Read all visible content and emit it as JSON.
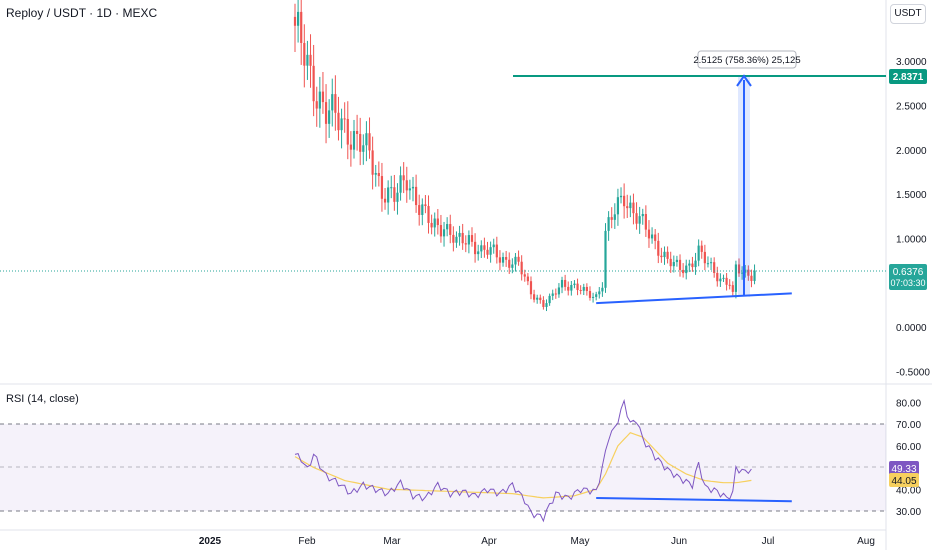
{
  "header": {
    "title": "Reploy / USDT · 1D · MEXC",
    "currency": "USDT"
  },
  "measure_label": "2.5125 (758.36%) 25,125",
  "last_price": {
    "value": "0.6376",
    "countdown": "07:03:30"
  },
  "target_price": "2.8371",
  "rsi": {
    "title": "RSI (14, close)",
    "value": "49.33",
    "ma_value": "44.05"
  },
  "chart_data": [
    {
      "type": "candlestick",
      "title": "Reploy / USDT · 1D · MEXC",
      "y_ticks": [
        "3.0000",
        "2.5000",
        "2.0000",
        "1.5000",
        "1.0000",
        "0.0000",
        "-0.5000"
      ],
      "x_ticks": [
        "2025",
        "Feb",
        "Mar",
        "Apr",
        "May",
        "Jun",
        "Jul",
        "Aug"
      ],
      "ylim": [
        -0.5,
        3.5
      ],
      "close_anchors": [
        [
          0,
          3.4
        ],
        [
          5,
          2.8
        ],
        [
          10,
          2.45
        ],
        [
          15,
          2.3
        ],
        [
          20,
          2.1
        ],
        [
          24,
          1.95
        ],
        [
          28,
          1.55
        ],
        [
          32,
          1.45
        ],
        [
          36,
          1.7
        ],
        [
          40,
          1.35
        ],
        [
          44,
          1.15
        ],
        [
          48,
          1.15
        ],
        [
          52,
          0.95
        ],
        [
          56,
          1.0
        ],
        [
          60,
          0.85
        ],
        [
          64,
          0.85
        ],
        [
          68,
          0.75
        ],
        [
          72,
          0.7
        ],
        [
          76,
          0.4
        ],
        [
          80,
          0.25
        ],
        [
          82,
          0.3
        ],
        [
          86,
          0.5
        ],
        [
          90,
          0.45
        ],
        [
          94,
          0.38
        ],
        [
          97,
          0.35
        ],
        [
          99,
          0.5
        ],
        [
          100,
          1.05
        ],
        [
          103,
          1.3
        ],
        [
          106,
          1.5
        ],
        [
          108,
          1.35
        ],
        [
          112,
          1.15
        ],
        [
          116,
          0.95
        ],
        [
          120,
          0.75
        ],
        [
          124,
          0.65
        ],
        [
          127,
          0.7
        ],
        [
          130,
          0.85
        ],
        [
          133,
          0.7
        ],
        [
          137,
          0.55
        ],
        [
          140,
          0.5
        ],
        [
          141,
          0.35
        ],
        [
          142,
          0.65
        ],
        [
          145,
          0.6
        ],
        [
          148,
          0.6
        ]
      ],
      "target_level": 2.8371,
      "last_close": 0.6376,
      "trendline": [
        [
          97,
          0.27
        ],
        [
          160,
          0.38
        ]
      ],
      "measure": {
        "from_x": 141,
        "from_y": 0.33,
        "to_y": 2.8371
      }
    },
    {
      "type": "line",
      "title": "RSI (14, close)",
      "y_ticks": [
        "80.00",
        "70.00",
        "60.00",
        "40.00",
        "30.00"
      ],
      "bands": [
        30,
        70
      ],
      "midline": 50,
      "series": [
        {
          "name": "RSI",
          "anchors": [
            [
              0,
              56
            ],
            [
              2,
              54
            ],
            [
              4,
              49
            ],
            [
              6,
              56
            ],
            [
              10,
              46
            ],
            [
              14,
              43
            ],
            [
              18,
              38
            ],
            [
              22,
              42
            ],
            [
              26,
              40
            ],
            [
              30,
              38
            ],
            [
              34,
              43
            ],
            [
              38,
              37
            ],
            [
              42,
              36
            ],
            [
              46,
              42
            ],
            [
              50,
              38
            ],
            [
              54,
              39
            ],
            [
              58,
              37
            ],
            [
              62,
              40
            ],
            [
              66,
              38
            ],
            [
              70,
              42
            ],
            [
              74,
              35
            ],
            [
              76,
              29
            ],
            [
              80,
              27
            ],
            [
              84,
              38
            ],
            [
              88,
              36
            ],
            [
              92,
              40
            ],
            [
              97,
              39
            ],
            [
              99,
              50
            ],
            [
              101,
              64
            ],
            [
              103,
              68
            ],
            [
              105,
              76
            ],
            [
              106,
              80
            ],
            [
              108,
              70
            ],
            [
              110,
              72
            ],
            [
              112,
              63
            ],
            [
              116,
              55
            ],
            [
              120,
              49
            ],
            [
              124,
              45
            ],
            [
              128,
              42
            ],
            [
              130,
              52
            ],
            [
              132,
              41
            ],
            [
              136,
              39
            ],
            [
              139,
              36
            ],
            [
              141,
              38
            ],
            [
              142,
              50
            ],
            [
              144,
              48
            ],
            [
              147,
              49.33
            ]
          ]
        },
        {
          "name": "MA",
          "anchors": [
            [
              0,
              55
            ],
            [
              6,
              50
            ],
            [
              16,
              44
            ],
            [
              30,
              40
            ],
            [
              50,
              39
            ],
            [
              70,
              38
            ],
            [
              80,
              36
            ],
            [
              90,
              37
            ],
            [
              97,
              40
            ],
            [
              100,
              47
            ],
            [
              104,
              60
            ],
            [
              108,
              66
            ],
            [
              112,
              64
            ],
            [
              116,
              58
            ],
            [
              120,
              52
            ],
            [
              126,
              47
            ],
            [
              132,
              44
            ],
            [
              138,
              43
            ],
            [
              142,
              43
            ],
            [
              147,
              44.05
            ]
          ]
        }
      ],
      "trendline": [
        [
          97,
          36
        ],
        [
          160,
          34.5
        ]
      ]
    }
  ],
  "colors": {
    "up": "#26a69a",
    "down": "#ef5350",
    "target": "#089981",
    "trend": "#2962ff",
    "rsi": "#7e57c2",
    "rsi_ma": "#f7d05e"
  }
}
